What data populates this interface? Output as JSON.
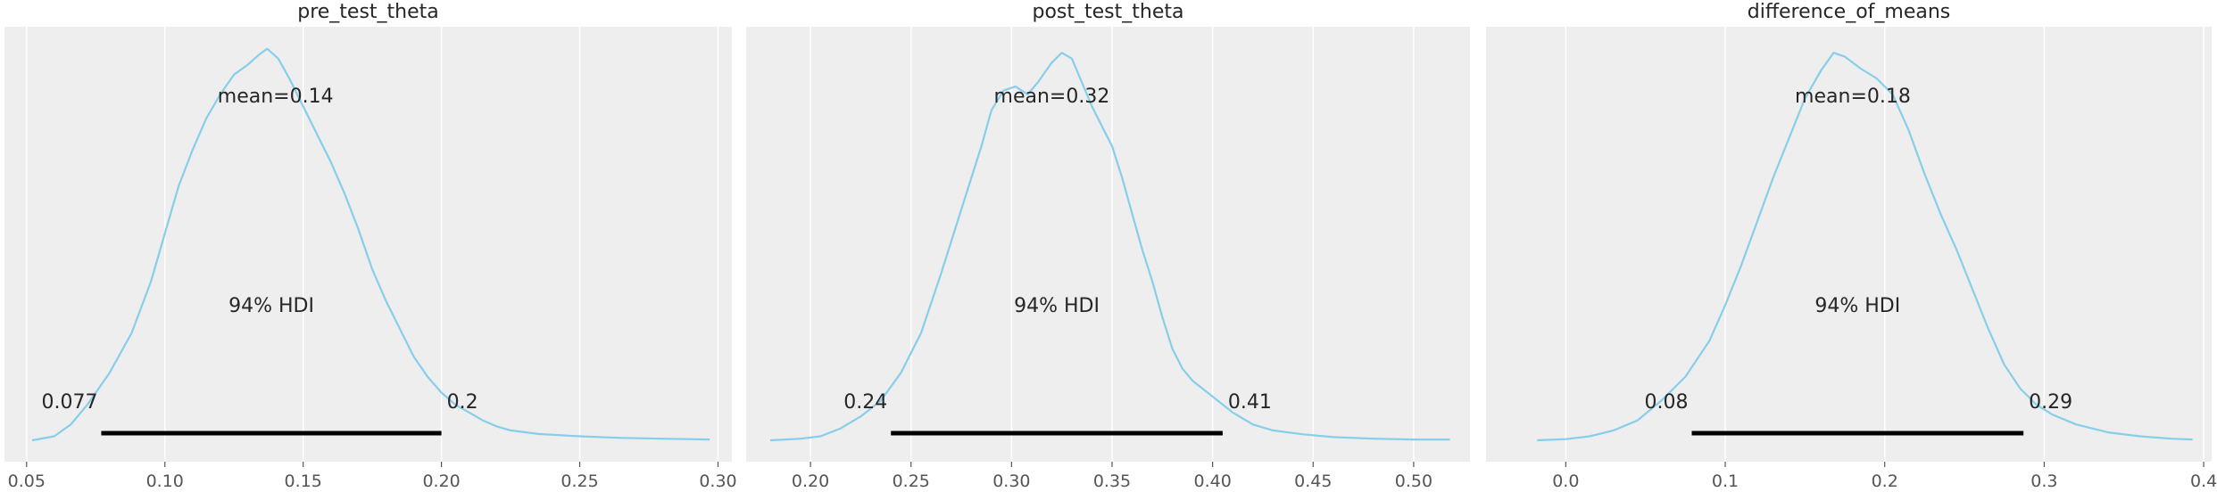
{
  "chart_data": [
    {
      "type": "line",
      "title": "pre_test_theta",
      "xlim": [
        0.042,
        0.305
      ],
      "ticks": [
        0.05,
        0.1,
        0.15,
        0.2,
        0.25,
        0.3
      ],
      "tick_labels": [
        "0.05",
        "0.10",
        "0.15",
        "0.20",
        "0.25",
        "0.30"
      ],
      "mean_label": "mean=0.14",
      "mean": 0.14,
      "hdi_label": "94% HDI",
      "hdi": [
        0.077,
        0.2
      ],
      "hdi_low_label": "0.077",
      "hdi_high_label": "0.2",
      "density": [
        [
          0.052,
          0.0
        ],
        [
          0.06,
          0.01
        ],
        [
          0.066,
          0.04
        ],
        [
          0.072,
          0.09
        ],
        [
          0.08,
          0.17
        ],
        [
          0.088,
          0.27
        ],
        [
          0.095,
          0.4
        ],
        [
          0.1,
          0.52
        ],
        [
          0.105,
          0.64
        ],
        [
          0.11,
          0.73
        ],
        [
          0.115,
          0.81
        ],
        [
          0.12,
          0.87
        ],
        [
          0.125,
          0.92
        ],
        [
          0.13,
          0.945
        ],
        [
          0.134,
          0.97
        ],
        [
          0.137,
          0.985
        ],
        [
          0.141,
          0.96
        ],
        [
          0.145,
          0.91
        ],
        [
          0.15,
          0.84
        ],
        [
          0.155,
          0.77
        ],
        [
          0.16,
          0.7
        ],
        [
          0.165,
          0.62
        ],
        [
          0.17,
          0.53
        ],
        [
          0.175,
          0.43
        ],
        [
          0.18,
          0.35
        ],
        [
          0.185,
          0.28
        ],
        [
          0.19,
          0.21
        ],
        [
          0.195,
          0.16
        ],
        [
          0.2,
          0.12
        ],
        [
          0.205,
          0.09
        ],
        [
          0.21,
          0.07
        ],
        [
          0.215,
          0.05
        ],
        [
          0.22,
          0.035
        ],
        [
          0.225,
          0.025
        ],
        [
          0.235,
          0.016
        ],
        [
          0.25,
          0.01
        ],
        [
          0.265,
          0.006
        ],
        [
          0.28,
          0.004
        ],
        [
          0.297,
          0.002
        ]
      ]
    },
    {
      "type": "line",
      "title": "post_test_theta",
      "xlim": [
        0.168,
        0.528
      ],
      "ticks": [
        0.2,
        0.25,
        0.3,
        0.35,
        0.4,
        0.45,
        0.5
      ],
      "tick_labels": [
        "0.20",
        "0.25",
        "0.30",
        "0.35",
        "0.40",
        "0.45",
        "0.50"
      ],
      "mean_label": "mean=0.32",
      "mean": 0.32,
      "hdi_label": "94% HDI",
      "hdi": [
        0.24,
        0.405
      ],
      "hdi_low_label": "0.24",
      "hdi_high_label": "0.41",
      "density": [
        [
          0.18,
          0.0
        ],
        [
          0.195,
          0.004
        ],
        [
          0.205,
          0.01
        ],
        [
          0.215,
          0.03
        ],
        [
          0.225,
          0.06
        ],
        [
          0.235,
          0.1
        ],
        [
          0.245,
          0.17
        ],
        [
          0.255,
          0.27
        ],
        [
          0.265,
          0.42
        ],
        [
          0.275,
          0.58
        ],
        [
          0.285,
          0.74
        ],
        [
          0.29,
          0.83
        ],
        [
          0.296,
          0.88
        ],
        [
          0.302,
          0.89
        ],
        [
          0.308,
          0.87
        ],
        [
          0.313,
          0.9
        ],
        [
          0.32,
          0.95
        ],
        [
          0.325,
          0.975
        ],
        [
          0.33,
          0.96
        ],
        [
          0.335,
          0.9
        ],
        [
          0.34,
          0.84
        ],
        [
          0.345,
          0.79
        ],
        [
          0.35,
          0.74
        ],
        [
          0.355,
          0.66
        ],
        [
          0.36,
          0.57
        ],
        [
          0.365,
          0.48
        ],
        [
          0.37,
          0.4
        ],
        [
          0.375,
          0.31
        ],
        [
          0.38,
          0.23
        ],
        [
          0.385,
          0.18
        ],
        [
          0.39,
          0.15
        ],
        [
          0.4,
          0.11
        ],
        [
          0.41,
          0.07
        ],
        [
          0.42,
          0.04
        ],
        [
          0.43,
          0.025
        ],
        [
          0.445,
          0.015
        ],
        [
          0.46,
          0.008
        ],
        [
          0.48,
          0.004
        ],
        [
          0.5,
          0.002
        ],
        [
          0.518,
          0.002
        ]
      ]
    },
    {
      "type": "line",
      "title": "difference_of_means",
      "xlim": [
        -0.05,
        0.405
      ],
      "ticks": [
        0.0,
        0.1,
        0.2,
        0.3,
        0.4
      ],
      "tick_labels": [
        "0.0",
        "0.1",
        "0.2",
        "0.3",
        "0.4"
      ],
      "mean_label": "mean=0.18",
      "mean": 0.18,
      "hdi_label": "94% HDI",
      "hdi": [
        0.079,
        0.287
      ],
      "hdi_low_label": "0.08",
      "hdi_high_label": "0.29",
      "density": [
        [
          -0.018,
          0.0
        ],
        [
          0.0,
          0.003
        ],
        [
          0.015,
          0.01
        ],
        [
          0.03,
          0.025
        ],
        [
          0.045,
          0.05
        ],
        [
          0.06,
          0.1
        ],
        [
          0.075,
          0.16
        ],
        [
          0.09,
          0.25
        ],
        [
          0.1,
          0.34
        ],
        [
          0.11,
          0.44
        ],
        [
          0.12,
          0.55
        ],
        [
          0.13,
          0.66
        ],
        [
          0.14,
          0.76
        ],
        [
          0.15,
          0.86
        ],
        [
          0.16,
          0.93
        ],
        [
          0.168,
          0.975
        ],
        [
          0.175,
          0.965
        ],
        [
          0.185,
          0.935
        ],
        [
          0.195,
          0.91
        ],
        [
          0.205,
          0.87
        ],
        [
          0.215,
          0.78
        ],
        [
          0.225,
          0.67
        ],
        [
          0.235,
          0.57
        ],
        [
          0.245,
          0.48
        ],
        [
          0.255,
          0.38
        ],
        [
          0.265,
          0.28
        ],
        [
          0.275,
          0.19
        ],
        [
          0.285,
          0.13
        ],
        [
          0.295,
          0.09
        ],
        [
          0.305,
          0.065
        ],
        [
          0.32,
          0.04
        ],
        [
          0.34,
          0.02
        ],
        [
          0.36,
          0.01
        ],
        [
          0.38,
          0.004
        ],
        [
          0.393,
          0.002
        ]
      ]
    }
  ]
}
